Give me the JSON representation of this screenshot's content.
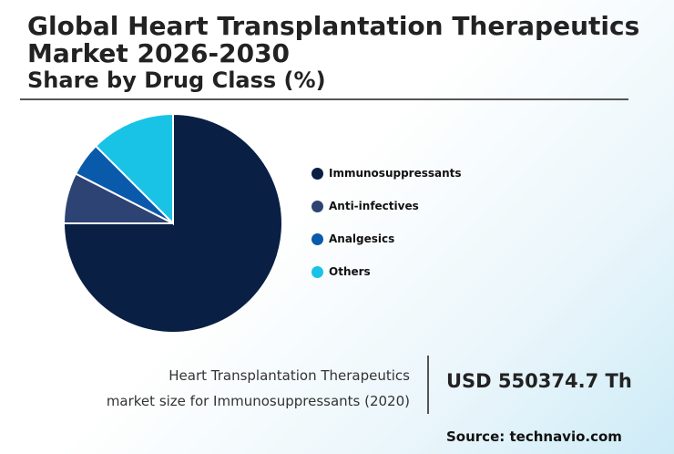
{
  "header": {
    "title": "Global Heart Transplantation Therapeutics Market 2026-2030",
    "subtitle": "Share by Drug Class (%)"
  },
  "chart_data": {
    "type": "pie",
    "title": "Share by Drug Class (%)",
    "categories": [
      "Immunosuppressants",
      "Anti-infectives",
      "Analgesics",
      "Others"
    ],
    "values": [
      75,
      7.5,
      5,
      12.5
    ],
    "colors": [
      "#0a1f44",
      "#2d4373",
      "#0a5aab",
      "#18c3e6"
    ],
    "legend_position": "right"
  },
  "market": {
    "description_line1": "Heart Transplantation Therapeutics",
    "description_line2": "market size for Immunosuppressants (2020)",
    "value": "USD 550374.7 Th"
  },
  "footer": {
    "source": "Source: technavio.com"
  }
}
